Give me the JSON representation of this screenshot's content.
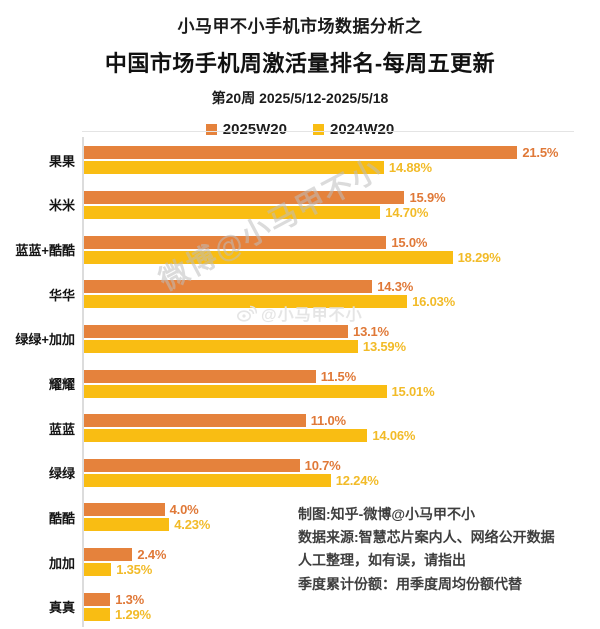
{
  "header": {
    "subtitle": "小马甲不小手机市场数据分析之",
    "title": "中国市场手机周激活量排名-每周五更新",
    "date_range": "第20周 2025/5/12-2025/5/18"
  },
  "legend": [
    {
      "label": "2025W20",
      "color": "#E5823C"
    },
    {
      "label": "2024W20",
      "color": "#F9BD13"
    }
  ],
  "chart_data": {
    "type": "bar",
    "orientation": "horizontal",
    "title": "中国市场手机周激活量排名-每周五更新",
    "xlabel": "",
    "ylabel": "",
    "xlim": [
      0,
      25.6
    ],
    "grid": false,
    "legend_position": "top",
    "value_suffix": "%",
    "categories": [
      "果果",
      "米米",
      "蓝蓝+酷酷",
      "华华",
      "绿绿+加加",
      "耀耀",
      "蓝蓝",
      "绿绿",
      "酷酷",
      "加加",
      "真真"
    ],
    "series": [
      {
        "name": "2025W20",
        "color": "#E5823C",
        "label_color": "#E07938",
        "values": [
          21.5,
          15.9,
          15.0,
          14.3,
          13.1,
          11.5,
          11.0,
          10.7,
          4.0,
          2.4,
          1.3
        ],
        "labels": [
          "21.5%",
          "15.9%",
          "15.0%",
          "14.3%",
          "13.1%",
          "11.5%",
          "11.0%",
          "10.7%",
          "4.0%",
          "2.4%",
          "1.3%"
        ]
      },
      {
        "name": "2024W20",
        "color": "#F9BD13",
        "label_color": "#F2BB28",
        "values": [
          14.88,
          14.7,
          18.29,
          16.03,
          13.59,
          15.01,
          14.06,
          12.24,
          4.23,
          1.35,
          1.29
        ],
        "labels": [
          "14.88%",
          "14.70%",
          "18.29%",
          "16.03%",
          "13.59%",
          "15.01%",
          "14.06%",
          "12.24%",
          "4.23%",
          "1.35%",
          "1.29%"
        ]
      }
    ]
  },
  "watermarks": {
    "diagonal_text": "微博@小马甲不小",
    "center_text": "@小马甲不小",
    "center_icon": "weibo-icon"
  },
  "footer": {
    "lines": [
      "制图:知乎-微博@小马甲不小",
      "数据来源:智慧芯片案内人、网络公开数据",
      "人工整理，如有误，请指出",
      "季度累计份额：用季度周均份额代替"
    ]
  }
}
